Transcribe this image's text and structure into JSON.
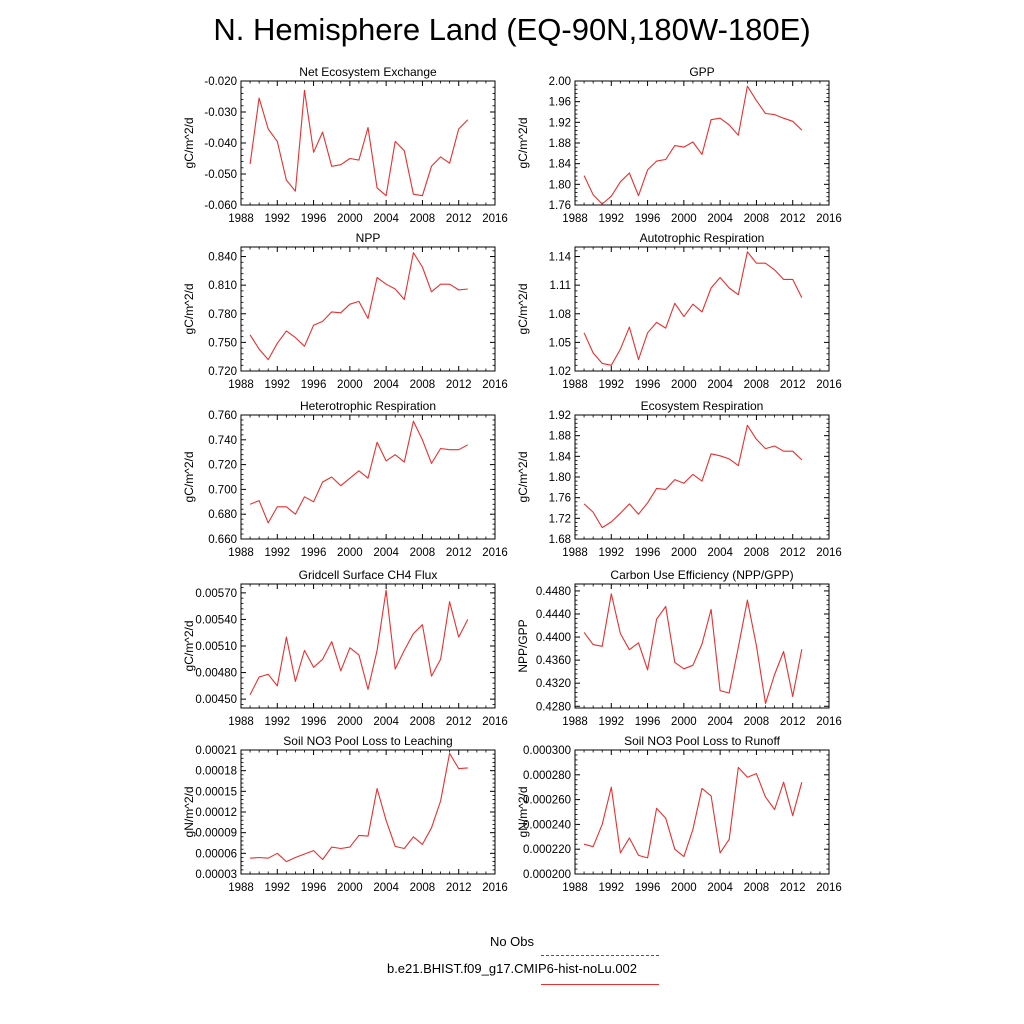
{
  "title": "N. Hemisphere Land (EQ-90N,180W-180E)",
  "legend": {
    "entries": [
      {
        "label": "No Obs",
        "color": "#4444cc",
        "dash": true
      },
      {
        "label": "b.e21.BHIST.f09_g17.CMIP6-hist-noLu.002",
        "color": "#e83030",
        "dash": false
      }
    ]
  },
  "chart_data": [
    {
      "type": "line",
      "title": "Net Ecosystem Exchange",
      "ylabel": "gC/m^2/d",
      "xlim": [
        1988,
        2016
      ],
      "xticks": [
        "1988",
        "1992",
        "1996",
        "2000",
        "2004",
        "2008",
        "2012",
        "2016"
      ],
      "ylim": [
        -0.06,
        -0.02
      ],
      "yticks": [
        -0.06,
        -0.05,
        -0.04,
        -0.03,
        -0.02
      ],
      "ytick_labels": [
        "-0.060",
        "-0.050",
        "-0.040",
        "-0.030",
        "-0.020"
      ],
      "x": [
        1989,
        1990,
        1991,
        1992,
        1993,
        1994,
        1995,
        1996,
        1997,
        1998,
        1999,
        2000,
        2001,
        2002,
        2003,
        2004,
        2005,
        2006,
        2007,
        2008,
        2009,
        2010,
        2011,
        2012,
        2013
      ],
      "series": [
        {
          "values": [
            -0.0468,
            -0.0255,
            -0.0355,
            -0.0395,
            -0.052,
            -0.0555,
            -0.023,
            -0.043,
            -0.0365,
            -0.0475,
            -0.047,
            -0.045,
            -0.0455,
            -0.035,
            -0.0545,
            -0.057,
            -0.0395,
            -0.0425,
            -0.0565,
            -0.057,
            -0.0475,
            -0.0445,
            -0.0465,
            -0.0355,
            -0.0325
          ],
          "color": "#e83030"
        }
      ]
    },
    {
      "type": "line",
      "title": "GPP",
      "ylabel": "gC/m^2/d",
      "xlim": [
        1988,
        2016
      ],
      "xticks": [
        "1988",
        "1992",
        "1996",
        "2000",
        "2004",
        "2008",
        "2012",
        "2016"
      ],
      "ylim": [
        1.76,
        2.0
      ],
      "yticks": [
        1.76,
        1.8,
        1.84,
        1.88,
        1.92,
        1.96,
        2.0
      ],
      "ytick_labels": [
        "1.76",
        "1.80",
        "1.84",
        "1.88",
        "1.92",
        "1.96",
        "2.00"
      ],
      "x": [
        1989,
        1990,
        1991,
        1992,
        1993,
        1994,
        1995,
        1996,
        1997,
        1998,
        1999,
        2000,
        2001,
        2002,
        2003,
        2004,
        2005,
        2006,
        2007,
        2008,
        2009,
        2010,
        2011,
        2012,
        2013
      ],
      "series": [
        {
          "values": [
            1.817,
            1.78,
            1.762,
            1.777,
            1.805,
            1.822,
            1.778,
            1.828,
            1.845,
            1.848,
            1.875,
            1.872,
            1.882,
            1.858,
            1.925,
            1.928,
            1.915,
            1.895,
            1.99,
            1.962,
            1.937,
            1.935,
            1.928,
            1.922,
            1.905
          ],
          "color": "#e83030"
        }
      ]
    },
    {
      "type": "line",
      "title": "NPP",
      "ylabel": "gC/m^2/d",
      "xlim": [
        1988,
        2016
      ],
      "xticks": [
        "1988",
        "1992",
        "1996",
        "2000",
        "2004",
        "2008",
        "2012",
        "2016"
      ],
      "ylim": [
        0.72,
        0.85
      ],
      "yticks": [
        0.72,
        0.75,
        0.78,
        0.81,
        0.84
      ],
      "ytick_labels": [
        "0.720",
        "0.750",
        "0.780",
        "0.810",
        "0.840"
      ],
      "x": [
        1989,
        1990,
        1991,
        1992,
        1993,
        1994,
        1995,
        1996,
        1997,
        1998,
        1999,
        2000,
        2001,
        2002,
        2003,
        2004,
        2005,
        2006,
        2007,
        2008,
        2009,
        2010,
        2011,
        2012,
        2013
      ],
      "series": [
        {
          "values": [
            0.758,
            0.743,
            0.732,
            0.749,
            0.762,
            0.755,
            0.746,
            0.768,
            0.772,
            0.782,
            0.781,
            0.79,
            0.793,
            0.775,
            0.818,
            0.811,
            0.806,
            0.795,
            0.844,
            0.829,
            0.803,
            0.811,
            0.811,
            0.805,
            0.806
          ],
          "color": "#e83030"
        }
      ]
    },
    {
      "type": "line",
      "title": "Autotrophic Respiration",
      "ylabel": "gC/m^2/d",
      "xlim": [
        1988,
        2016
      ],
      "xticks": [
        "1988",
        "1992",
        "1996",
        "2000",
        "2004",
        "2008",
        "2012",
        "2016"
      ],
      "ylim": [
        1.02,
        1.15
      ],
      "yticks": [
        1.02,
        1.05,
        1.08,
        1.11,
        1.14
      ],
      "ytick_labels": [
        "1.02",
        "1.05",
        "1.08",
        "1.11",
        "1.14"
      ],
      "x": [
        1989,
        1990,
        1991,
        1992,
        1993,
        1994,
        1995,
        1996,
        1997,
        1998,
        1999,
        2000,
        2001,
        2002,
        2003,
        2004,
        2005,
        2006,
        2007,
        2008,
        2009,
        2010,
        2011,
        2012,
        2013
      ],
      "series": [
        {
          "values": [
            1.06,
            1.039,
            1.028,
            1.026,
            1.043,
            1.066,
            1.032,
            1.06,
            1.071,
            1.065,
            1.091,
            1.077,
            1.09,
            1.082,
            1.107,
            1.118,
            1.107,
            1.1,
            1.145,
            1.133,
            1.133,
            1.126,
            1.116,
            1.116,
            1.097
          ],
          "color": "#e83030"
        }
      ]
    },
    {
      "type": "line",
      "title": "Heterotrophic Respiration",
      "ylabel": "gC/m^2/d",
      "xlim": [
        1988,
        2016
      ],
      "xticks": [
        "1988",
        "1992",
        "1996",
        "2000",
        "2004",
        "2008",
        "2012",
        "2016"
      ],
      "ylim": [
        0.66,
        0.76
      ],
      "yticks": [
        0.66,
        0.68,
        0.7,
        0.72,
        0.74,
        0.76
      ],
      "ytick_labels": [
        "0.660",
        "0.680",
        "0.700",
        "0.720",
        "0.740",
        "0.760"
      ],
      "x": [
        1989,
        1990,
        1991,
        1992,
        1993,
        1994,
        1995,
        1996,
        1997,
        1998,
        1999,
        2000,
        2001,
        2002,
        2003,
        2004,
        2005,
        2006,
        2007,
        2008,
        2009,
        2010,
        2011,
        2012,
        2013
      ],
      "series": [
        {
          "values": [
            0.688,
            0.691,
            0.673,
            0.686,
            0.686,
            0.68,
            0.694,
            0.69,
            0.706,
            0.71,
            0.703,
            0.709,
            0.715,
            0.709,
            0.738,
            0.723,
            0.728,
            0.722,
            0.755,
            0.74,
            0.721,
            0.733,
            0.732,
            0.732,
            0.736
          ],
          "color": "#e83030"
        }
      ]
    },
    {
      "type": "line",
      "title": "Ecosystem Respiration",
      "ylabel": "gC/m^2/d",
      "xlim": [
        1988,
        2016
      ],
      "xticks": [
        "1988",
        "1992",
        "1996",
        "2000",
        "2004",
        "2008",
        "2012",
        "2016"
      ],
      "ylim": [
        1.68,
        1.92
      ],
      "yticks": [
        1.68,
        1.72,
        1.76,
        1.8,
        1.84,
        1.88,
        1.92
      ],
      "ytick_labels": [
        "1.68",
        "1.72",
        "1.76",
        "1.80",
        "1.84",
        "1.88",
        "1.92"
      ],
      "x": [
        1989,
        1990,
        1991,
        1992,
        1993,
        1994,
        1995,
        1996,
        1997,
        1998,
        1999,
        2000,
        2001,
        2002,
        2003,
        2004,
        2005,
        2006,
        2007,
        2008,
        2009,
        2010,
        2011,
        2012,
        2013
      ],
      "series": [
        {
          "values": [
            1.748,
            1.732,
            1.702,
            1.713,
            1.73,
            1.748,
            1.728,
            1.75,
            1.778,
            1.776,
            1.795,
            1.788,
            1.805,
            1.792,
            1.845,
            1.841,
            1.835,
            1.822,
            1.9,
            1.873,
            1.855,
            1.86,
            1.85,
            1.85,
            1.833
          ],
          "color": "#e83030"
        }
      ]
    },
    {
      "type": "line",
      "title": "Gridcell Surface CH4 Flux",
      "ylabel": "gC/m^2/d",
      "xlim": [
        1988,
        2016
      ],
      "xticks": [
        "1988",
        "1992",
        "1996",
        "2000",
        "2004",
        "2008",
        "2012",
        "2016"
      ],
      "ylim": [
        0.0044,
        0.0058
      ],
      "yticks": [
        0.0045,
        0.0048,
        0.0051,
        0.0054,
        0.0057
      ],
      "ytick_labels": [
        "0.00450",
        "0.00480",
        "0.00510",
        "0.00540",
        "0.00570"
      ],
      "x": [
        1989,
        1990,
        1991,
        1992,
        1993,
        1994,
        1995,
        1996,
        1997,
        1998,
        1999,
        2000,
        2001,
        2002,
        2003,
        2004,
        2005,
        2006,
        2007,
        2008,
        2009,
        2010,
        2011,
        2012,
        2013
      ],
      "series": [
        {
          "values": [
            0.00455,
            0.00475,
            0.00478,
            0.00465,
            0.0052,
            0.0047,
            0.00505,
            0.00486,
            0.00495,
            0.00515,
            0.00482,
            0.00508,
            0.005,
            0.00461,
            0.00505,
            0.00573,
            0.00484,
            0.00505,
            0.00524,
            0.00534,
            0.00476,
            0.00495,
            0.0056,
            0.0052,
            0.0054
          ],
          "color": "#e83030"
        }
      ]
    },
    {
      "type": "line",
      "title": "Carbon Use Efficiency (NPP/GPP)",
      "ylabel": "NPP/GPP",
      "xlim": [
        1988,
        2016
      ],
      "xticks": [
        "1988",
        "1992",
        "1996",
        "2000",
        "2004",
        "2008",
        "2012",
        "2016"
      ],
      "ylim": [
        0.4277,
        0.4492
      ],
      "yticks": [
        0.428,
        0.432,
        0.436,
        0.44,
        0.444,
        0.448
      ],
      "ytick_labels": [
        "0.4280",
        "0.4320",
        "0.4360",
        "0.4400",
        "0.4440",
        "0.4480"
      ],
      "x": [
        1989,
        1990,
        1991,
        1992,
        1993,
        1994,
        1995,
        1996,
        1997,
        1998,
        1999,
        2000,
        2001,
        2002,
        2003,
        2004,
        2005,
        2006,
        2007,
        2008,
        2009,
        2010,
        2011,
        2012,
        2013
      ],
      "series": [
        {
          "values": [
            0.4408,
            0.4387,
            0.4384,
            0.4475,
            0.4406,
            0.4378,
            0.439,
            0.4343,
            0.4431,
            0.4453,
            0.4356,
            0.4345,
            0.4351,
            0.4388,
            0.4448,
            0.4307,
            0.4303,
            0.4382,
            0.4464,
            0.4385,
            0.4285,
            0.4335,
            0.4375,
            0.4297,
            0.4379
          ],
          "color": "#e83030"
        }
      ]
    },
    {
      "type": "line",
      "title": "Soil NO3 Pool Loss to Leaching",
      "ylabel": "gN/m^2/d",
      "xlim": [
        1988,
        2016
      ],
      "xticks": [
        "1988",
        "1992",
        "1996",
        "2000",
        "2004",
        "2008",
        "2012",
        "2016"
      ],
      "ylim": [
        3e-05,
        0.00021
      ],
      "yticks": [
        3e-05,
        6e-05,
        9e-05,
        0.00012,
        0.00015,
        0.00018,
        0.00021
      ],
      "ytick_labels": [
        "0.00003",
        "0.00006",
        "0.00009",
        "0.00012",
        "0.00015",
        "0.00018",
        "0.00021"
      ],
      "x": [
        1989,
        1990,
        1991,
        1992,
        1993,
        1994,
        1995,
        1996,
        1997,
        1998,
        1999,
        2000,
        2001,
        2002,
        2003,
        2004,
        2005,
        2006,
        2007,
        2008,
        2009,
        2010,
        2011,
        2012,
        2013
      ],
      "series": [
        {
          "values": [
            5.3e-05,
            5.4e-05,
            5.3e-05,
            6e-05,
            4.8e-05,
            5.4e-05,
            5.9e-05,
            6.4e-05,
            5.1e-05,
            6.9e-05,
            6.7e-05,
            6.9e-05,
            8.6e-05,
            8.5e-05,
            0.000154,
            0.000108,
            7e-05,
            6.7e-05,
            8.4e-05,
            7.3e-05,
            9.7e-05,
            0.000136,
            0.000205,
            0.000183,
            0.000184
          ],
          "color": "#e83030"
        }
      ]
    },
    {
      "type": "line",
      "title": "Soil NO3 Pool Loss to Runoff",
      "ylabel": "gN/m^2/d",
      "xlim": [
        1988,
        2016
      ],
      "xticks": [
        "1988",
        "1992",
        "1996",
        "2000",
        "2004",
        "2008",
        "2012",
        "2016"
      ],
      "ylim": [
        0.0002,
        0.0003
      ],
      "yticks": [
        0.0002,
        0.00022,
        0.00024,
        0.00026,
        0.00028,
        0.0003
      ],
      "ytick_labels": [
        "0.000200",
        "0.000220",
        "0.000240",
        "0.000260",
        "0.000280",
        "0.000300"
      ],
      "x": [
        1989,
        1990,
        1991,
        1992,
        1993,
        1994,
        1995,
        1996,
        1997,
        1998,
        1999,
        2000,
        2001,
        2002,
        2003,
        2004,
        2005,
        2006,
        2007,
        2008,
        2009,
        2010,
        2011,
        2012,
        2013
      ],
      "series": [
        {
          "values": [
            0.000224,
            0.000222,
            0.00024,
            0.00027,
            0.000217,
            0.000229,
            0.000215,
            0.000213,
            0.000253,
            0.000245,
            0.00022,
            0.000214,
            0.000236,
            0.000269,
            0.000263,
            0.000217,
            0.000228,
            0.000286,
            0.000278,
            0.000281,
            0.000262,
            0.000252,
            0.000274,
            0.000247,
            0.000274
          ],
          "color": "#e83030"
        }
      ]
    }
  ]
}
